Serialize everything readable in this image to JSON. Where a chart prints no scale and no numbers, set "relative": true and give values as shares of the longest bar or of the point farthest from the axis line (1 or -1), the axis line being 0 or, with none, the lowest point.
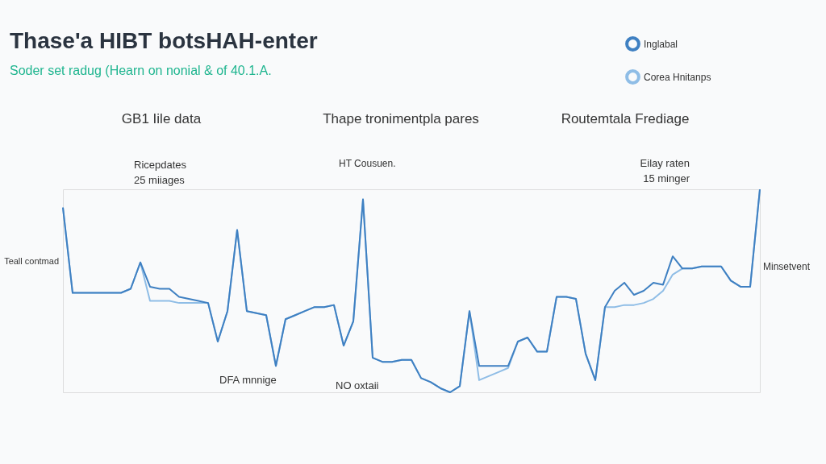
{
  "chart_data": {
    "type": "line",
    "title": "Thase'a HIBT botsHAH-enter",
    "subtitle": "Soder set radug (Hearn on nonial & of 40.1.A.",
    "relative": true,
    "legend": "top right",
    "categories": [
      null,
      null,
      null,
      null,
      null,
      null,
      null,
      null,
      null,
      null,
      null,
      null,
      null,
      null,
      null,
      null,
      null,
      null,
      null,
      null,
      null,
      null,
      null,
      null,
      null,
      null,
      null,
      null,
      null,
      null,
      null,
      null,
      null,
      null,
      null,
      null,
      null,
      null,
      null,
      null,
      null,
      null,
      null,
      null,
      null,
      null,
      null,
      null,
      null,
      null,
      null,
      null,
      null,
      null,
      null,
      null,
      null,
      null,
      null,
      null,
      null,
      null,
      null,
      null,
      null,
      null,
      null,
      null,
      null,
      null,
      null,
      null,
      null
    ],
    "series": [
      {
        "name": "Inglabal",
        "color": "#3f80c2",
        "values": [
          0.91,
          0.49,
          0.49,
          0.49,
          0.49,
          0.49,
          0.49,
          0.51,
          0.64,
          0.52,
          0.51,
          0.51,
          0.47,
          0.46,
          0.45,
          0.44,
          0.25,
          0.4,
          0.8,
          0.4,
          0.39,
          0.38,
          0.13,
          0.36,
          0.38,
          0.4,
          0.42,
          0.42,
          0.43,
          0.23,
          0.35,
          0.95,
          0.17,
          0.15,
          0.15,
          0.16,
          0.16,
          0.07,
          0.05,
          0.02,
          0,
          0.03,
          0.4,
          0.13,
          0.13,
          0.13,
          0.13,
          0.25,
          0.27,
          0.2,
          0.2,
          0.47,
          0.47,
          0.46,
          0.19,
          0.06,
          0.42,
          0.5,
          0.54,
          0.48,
          0.5,
          0.54,
          0.53,
          0.67,
          0.61,
          0.61,
          0.62,
          0.62,
          0.62,
          0.55,
          0.52,
          0.52,
          1
        ]
      },
      {
        "name": "Corea Hnitanps",
        "color": "#8fbde6",
        "values": [
          0.91,
          0.49,
          0.49,
          0.49,
          0.49,
          0.49,
          0.49,
          0.51,
          0.64,
          0.45,
          0.45,
          0.45,
          0.44,
          0.44,
          0.44,
          0.44,
          0.25,
          0.4,
          0.8,
          0.4,
          0.39,
          0.38,
          0.13,
          0.36,
          0.38,
          0.4,
          0.42,
          0.42,
          0.43,
          0.23,
          0.35,
          0.95,
          0.17,
          0.15,
          0.15,
          0.16,
          0.16,
          0.07,
          0.05,
          0.02,
          0,
          0.03,
          0.4,
          0.06,
          0.08,
          0.1,
          0.12,
          0.25,
          0.27,
          0.2,
          0.2,
          0.47,
          0.47,
          0.46,
          0.19,
          0.06,
          0.42,
          0.42,
          0.43,
          0.43,
          0.44,
          0.46,
          0.5,
          0.58,
          0.61,
          0.61,
          0.62,
          0.62,
          0.62,
          0.55,
          0.52,
          0.52,
          1
        ]
      }
    ],
    "annotations": [
      "GB1 Iile data",
      "Thape tronimentpla pares",
      "Routemtala Frediage",
      "Ricepdates",
      "25 miiages",
      "HT Cousuen.",
      "Teall contmad",
      "DFA mnnige",
      "NO oxtaii",
      "Eilay raten",
      "15 minger",
      "Minsetvent"
    ]
  }
}
